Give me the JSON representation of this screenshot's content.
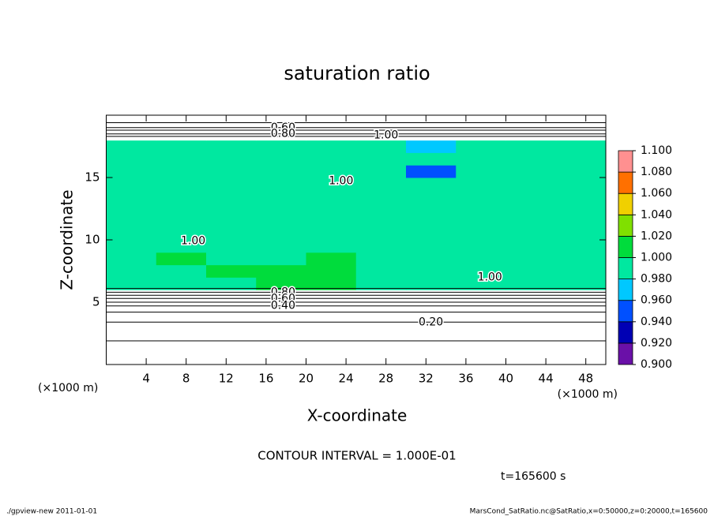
{
  "chart_data": {
    "type": "contour",
    "title": "saturation ratio",
    "x_label": "X-coordinate",
    "y_label": "Z-coordinate",
    "x_unit": "(×1000 m)",
    "y_unit": "(×1000 m)",
    "xlim": [
      0,
      50
    ],
    "ylim": [
      0,
      20
    ],
    "xticks": [
      4,
      8,
      12,
      16,
      20,
      24,
      28,
      32,
      36,
      40,
      44,
      48
    ],
    "yticks": [
      5,
      10,
      15
    ],
    "x": [
      2.5,
      7.5,
      12.5,
      17.5,
      22.5,
      27.5,
      32.5,
      37.5,
      42.5,
      47.5
    ],
    "z": [
      0.5,
      1.5,
      2.5,
      3.5,
      4.5,
      5.5,
      6.5,
      7.5,
      8.5,
      9.5,
      10.5,
      11.5,
      12.5,
      13.5,
      14.5,
      15.5,
      16.5,
      17.5,
      18.5,
      19.5
    ],
    "field": [
      [
        0.05,
        0.05,
        0.05,
        0.05,
        0.05,
        0.05,
        0.05,
        0.05,
        0.05,
        0.05
      ],
      [
        0.1,
        0.1,
        0.1,
        0.1,
        0.1,
        0.1,
        0.1,
        0.1,
        0.1,
        0.1
      ],
      [
        0.15,
        0.15,
        0.15,
        0.15,
        0.15,
        0.15,
        0.15,
        0.15,
        0.15,
        0.15
      ],
      [
        0.25,
        0.25,
        0.25,
        0.25,
        0.25,
        0.25,
        0.25,
        0.25,
        0.25,
        0.25
      ],
      [
        0.4,
        0.4,
        0.4,
        0.4,
        0.4,
        0.4,
        0.4,
        0.4,
        0.4,
        0.4
      ],
      [
        0.7,
        0.7,
        0.7,
        0.7,
        0.7,
        0.7,
        0.7,
        0.7,
        0.7,
        0.7
      ],
      [
        0.99,
        0.99,
        0.99,
        1.005,
        1.005,
        0.99,
        0.99,
        0.99,
        0.99,
        0.99
      ],
      [
        0.99,
        0.99,
        1.005,
        1.005,
        1.005,
        0.99,
        0.99,
        0.99,
        0.99,
        0.99
      ],
      [
        0.99,
        1.005,
        0.99,
        0.99,
        1.005,
        0.99,
        0.99,
        0.99,
        0.99,
        0.99
      ],
      [
        0.99,
        0.99,
        0.99,
        0.99,
        0.99,
        0.99,
        0.99,
        0.99,
        0.99,
        0.99
      ],
      [
        0.99,
        0.99,
        0.99,
        0.99,
        0.99,
        0.99,
        0.99,
        0.99,
        0.99,
        0.99
      ],
      [
        0.99,
        0.99,
        0.99,
        0.99,
        0.99,
        0.99,
        0.99,
        0.99,
        0.99,
        0.99
      ],
      [
        0.99,
        0.99,
        0.99,
        0.99,
        0.99,
        0.99,
        0.99,
        0.99,
        0.99,
        0.99
      ],
      [
        0.99,
        0.99,
        0.99,
        0.99,
        0.99,
        0.99,
        0.99,
        0.99,
        0.99,
        0.99
      ],
      [
        0.99,
        0.99,
        0.99,
        0.99,
        0.99,
        0.99,
        0.99,
        0.99,
        0.99,
        0.99
      ],
      [
        0.99,
        0.99,
        0.99,
        0.99,
        0.99,
        0.99,
        0.95,
        0.99,
        0.99,
        0.99
      ],
      [
        0.99,
        0.99,
        0.99,
        0.99,
        0.99,
        0.99,
        0.99,
        0.99,
        0.99,
        0.99
      ],
      [
        0.99,
        0.99,
        0.99,
        0.99,
        0.99,
        0.99,
        0.97,
        0.99,
        0.99,
        0.99
      ],
      [
        0.85,
        0.85,
        0.85,
        0.85,
        0.85,
        0.85,
        0.85,
        0.85,
        0.85,
        0.85
      ],
      [
        0.5,
        0.5,
        0.5,
        0.5,
        0.5,
        0.5,
        0.5,
        0.5,
        0.5,
        0.5
      ]
    ],
    "contours": [
      {
        "level": 0.1,
        "z": 1.9
      },
      {
        "level": 0.2,
        "z": 3.4
      },
      {
        "level": 0.3,
        "z": 4.2
      },
      {
        "level": 0.4,
        "z": 4.7
      },
      {
        "level": 0.5,
        "z": 5.0
      },
      {
        "level": 0.6,
        "z": 5.3
      },
      {
        "level": 0.7,
        "z": 5.55
      },
      {
        "level": 0.8,
        "z": 5.8
      },
      {
        "level": 0.9,
        "z": 6.1
      },
      {
        "level": 0.9,
        "z": 18.3
      },
      {
        "level": 0.8,
        "z": 18.5
      },
      {
        "level": 0.7,
        "z": 18.8
      },
      {
        "level": 0.6,
        "z": 19.0
      },
      {
        "level": 0.5,
        "z": 19.4
      }
    ],
    "contour_labels": [
      {
        "value": 0.6,
        "label": "0.60",
        "x": 17.7,
        "z": 19.0
      },
      {
        "value": 0.8,
        "label": "0.80",
        "x": 17.7,
        "z": 18.5
      },
      {
        "value": 1,
        "label": "1.00",
        "x": 28.0,
        "z": 18.4
      },
      {
        "value": 1,
        "label": "1.00",
        "x": 23.5,
        "z": 14.7
      },
      {
        "value": 1,
        "label": "1.00",
        "x": 8.7,
        "z": 9.9
      },
      {
        "value": 1,
        "label": "1.00",
        "x": 38.4,
        "z": 7.0
      },
      {
        "value": 0.8,
        "label": "0.80",
        "x": 17.7,
        "z": 5.8
      },
      {
        "value": 0.6,
        "label": "0.60",
        "x": 17.7,
        "z": 5.3
      },
      {
        "value": 0.4,
        "label": "0.40",
        "x": 17.7,
        "z": 4.7
      },
      {
        "value": 0.2,
        "label": "0.20",
        "x": 32.5,
        "z": 3.4
      }
    ],
    "colorbar_ticks": [
      {
        "value": 0.9,
        "label": "0.900"
      },
      {
        "value": 0.92,
        "label": "0.920"
      },
      {
        "value": 0.94,
        "label": "0.940"
      },
      {
        "value": 0.96,
        "label": "0.960"
      },
      {
        "value": 0.98,
        "label": "0.980"
      },
      {
        "value": 1,
        "label": "1.000"
      },
      {
        "value": 1.02,
        "label": "1.020"
      },
      {
        "value": 1.04,
        "label": "1.040"
      },
      {
        "value": 1.06,
        "label": "1.060"
      },
      {
        "value": 1.08,
        "label": "1.080"
      },
      {
        "value": 1.1,
        "label": "1.100"
      }
    ],
    "colors": [
      "#6a10a8",
      "#0000b4",
      "#0050ff",
      "#00c8ff",
      "#00e8a0",
      "#00dc3c",
      "#80e000",
      "#f0d000",
      "#ff7000",
      "#ff9090"
    ],
    "contour_interval": "CONTOUR INTERVAL = 1.000E-01",
    "time_label": "t=165600 s",
    "footer_left": "./gpview-new  2011-01-01",
    "footer_right": "MarsCond_SatRatio.nc@SatRatio,x=0:50000,z=0:20000,t=165600"
  }
}
